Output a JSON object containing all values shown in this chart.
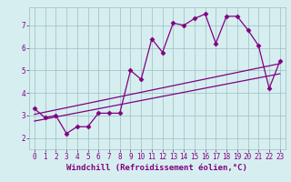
{
  "x_data": [
    0,
    1,
    2,
    3,
    4,
    5,
    6,
    7,
    8,
    9,
    10,
    11,
    12,
    13,
    14,
    15,
    16,
    17,
    18,
    19,
    20,
    21,
    22,
    23
  ],
  "y_main": [
    3.3,
    2.9,
    3.0,
    2.2,
    2.5,
    2.5,
    3.1,
    3.1,
    3.1,
    5.0,
    4.6,
    6.4,
    5.8,
    7.1,
    7.0,
    7.3,
    7.5,
    6.2,
    7.4,
    7.4,
    6.8,
    6.1,
    4.2,
    5.4
  ],
  "trend1_x": [
    0,
    23
  ],
  "trend1_y": [
    3.05,
    5.3
  ],
  "trend2_x": [
    0,
    23
  ],
  "trend2_y": [
    2.75,
    4.85
  ],
  "line_color": "#800080",
  "bg_color": "#d6eef0",
  "grid_color": "#9bbfbf",
  "xlabel": "Windchill (Refroidissement éolien,°C)",
  "xlim": [
    -0.5,
    23.5
  ],
  "ylim": [
    1.5,
    7.8
  ],
  "yticks": [
    2,
    3,
    4,
    5,
    6,
    7
  ],
  "xticks": [
    0,
    1,
    2,
    3,
    4,
    5,
    6,
    7,
    8,
    9,
    10,
    11,
    12,
    13,
    14,
    15,
    16,
    17,
    18,
    19,
    20,
    21,
    22,
    23
  ],
  "marker": "D",
  "markersize": 2.5,
  "linewidth": 0.9,
  "xlabel_fontsize": 6.5,
  "tick_fontsize": 5.5
}
